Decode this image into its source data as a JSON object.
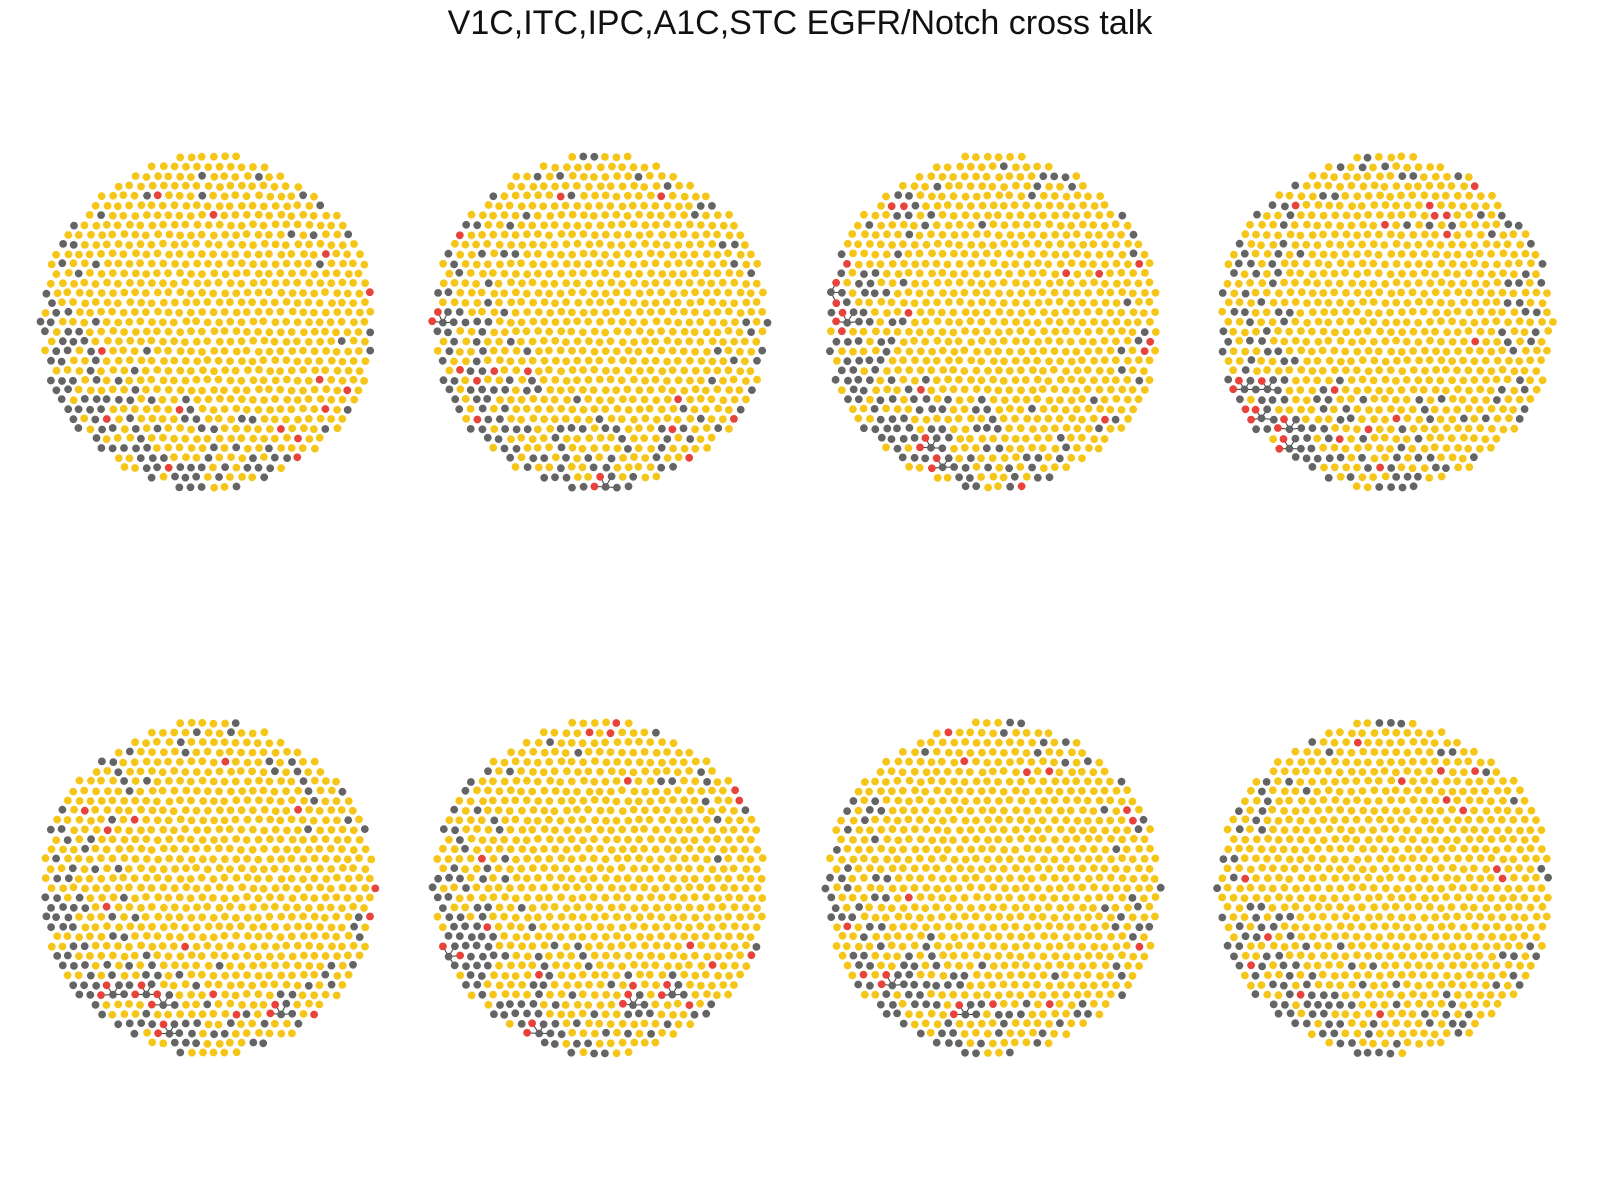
{
  "title": "V1C,ITC,IPC,A1C,STC EGFR/Notch cross talk",
  "colors": {
    "background": "#ffffff",
    "node_yellow": "#f5c518",
    "node_gray": "#646464",
    "node_red": "#e8433a",
    "edge": "#3a3a3a"
  },
  "panels": [
    {
      "id": "panel-1",
      "gray_fraction": 0.14,
      "red_nodes": 14,
      "edge_clusters": 0
    },
    {
      "id": "panel-2",
      "gray_fraction": 0.16,
      "red_nodes": 12,
      "edge_clusters": 2
    },
    {
      "id": "panel-3",
      "gray_fraction": 0.17,
      "red_nodes": 13,
      "edge_clusters": 4
    },
    {
      "id": "panel-4",
      "gray_fraction": 0.18,
      "red_nodes": 14,
      "edge_clusters": 5
    },
    {
      "id": "panel-5",
      "gray_fraction": 0.15,
      "red_nodes": 13,
      "edge_clusters": 5
    },
    {
      "id": "panel-6",
      "gray_fraction": 0.15,
      "red_nodes": 14,
      "edge_clusters": 4
    },
    {
      "id": "panel-7",
      "gray_fraction": 0.14,
      "red_nodes": 12,
      "edge_clusters": 2
    },
    {
      "id": "panel-8",
      "gray_fraction": 0.13,
      "red_nodes": 13,
      "edge_clusters": 0
    }
  ]
}
